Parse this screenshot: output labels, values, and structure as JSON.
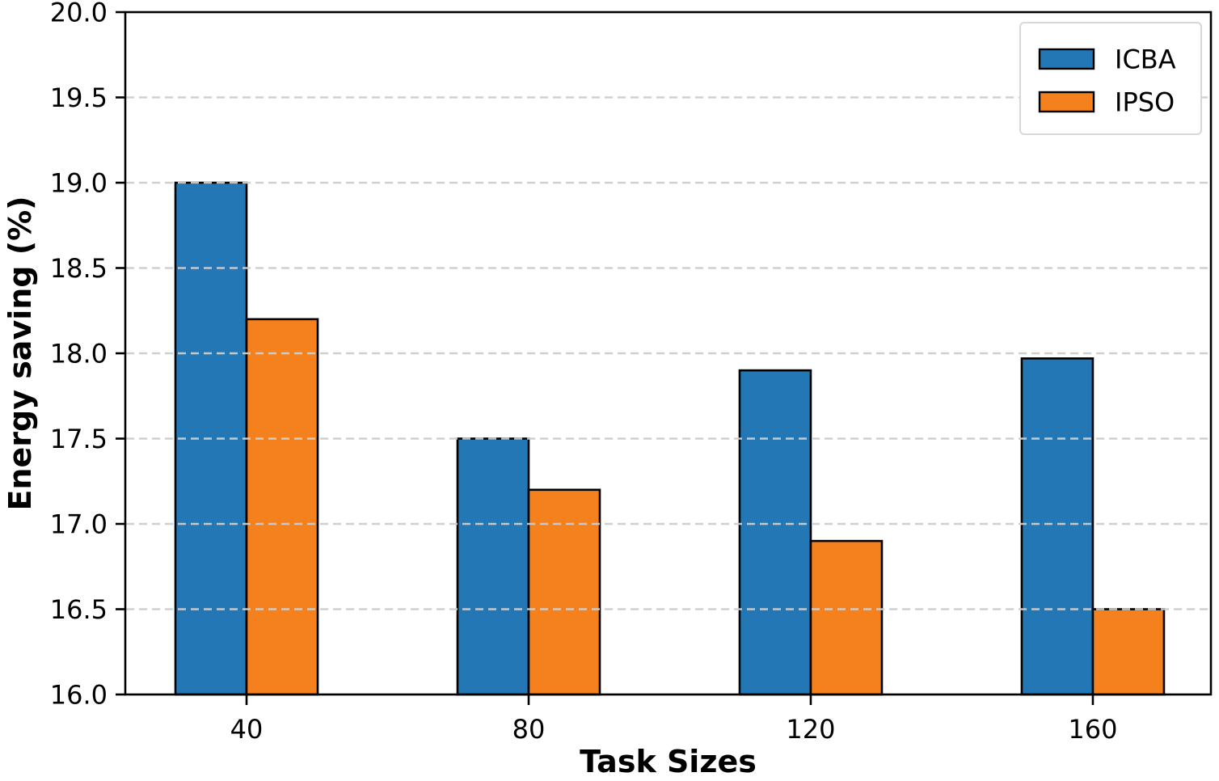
{
  "chart_data": {
    "type": "bar",
    "categories": [
      "40",
      "80",
      "120",
      "160"
    ],
    "series": [
      {
        "name": "ICBA",
        "color": "#2277b4",
        "edge_color": "#000000",
        "values": [
          19.0,
          17.5,
          17.9,
          17.97
        ]
      },
      {
        "name": "IPSO",
        "color": "#f5801e",
        "edge_color": "#000000",
        "values": [
          18.2,
          17.2,
          16.9,
          16.5
        ]
      }
    ],
    "title": "",
    "xlabel": "Task Sizes",
    "ylabel": "Energy saving (%)",
    "ylim": [
      16.0,
      20.0
    ],
    "ytick_step": 0.5,
    "ytick_labels": [
      "16.0",
      "16.5",
      "17.0",
      "17.5",
      "18.0",
      "18.5",
      "19.0",
      "19.5",
      "20.0"
    ],
    "grid": {
      "axis": "y",
      "style": "dashed",
      "color": "#cdcdcd",
      "on_top_of_bars": true
    },
    "axes": {
      "spine_color": "#000000",
      "background": "#ffffff"
    },
    "legend": {
      "position": "upper-right",
      "entries": [
        "ICBA",
        "IPSO"
      ],
      "border_color": "#d8d8d8",
      "background": "#ffffff"
    }
  }
}
